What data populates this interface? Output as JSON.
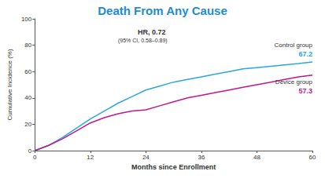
{
  "chart_data": {
    "type": "line",
    "title": "Death From Any Cause",
    "x_label": "Months since Enrollment",
    "y_label": "Cumulative Incidence (%)",
    "annotations": [
      "HR, 0.72",
      "(95% CI, 0.58–0.89)"
    ],
    "x": [
      0,
      3,
      6,
      9,
      12,
      15,
      18,
      21,
      24,
      27,
      30,
      33,
      36,
      39,
      42,
      45,
      48,
      51,
      54,
      57,
      60
    ],
    "series": [
      {
        "name": "Control group",
        "color": "#29a8e0",
        "values": [
          0,
          4,
          10,
          17,
          24,
          30,
          36,
          41,
          46,
          49,
          52,
          54,
          56,
          58,
          60,
          62,
          63,
          64,
          65,
          66,
          67.2
        ],
        "value_labels": [
          null,
          null,
          null,
          null,
          null,
          null,
          null,
          null,
          null,
          null,
          null,
          null,
          null,
          null,
          null,
          null,
          null,
          null,
          null,
          null,
          "67.2"
        ]
      },
      {
        "name": "Device group",
        "color": "#c4168c",
        "values": [
          0,
          4,
          9,
          15,
          21,
          25,
          28,
          30,
          31,
          34,
          37,
          40,
          42,
          44,
          46,
          48,
          50,
          52,
          54,
          56,
          57.3
        ],
        "value_labels": [
          null,
          null,
          null,
          null,
          null,
          null,
          null,
          null,
          null,
          null,
          null,
          null,
          null,
          null,
          null,
          null,
          null,
          null,
          null,
          null,
          "57.3"
        ]
      }
    ],
    "xlim": [
      0,
      60
    ],
    "xticks": [
      0,
      12,
      24,
      36,
      48,
      60
    ],
    "ylim": [
      0,
      100
    ],
    "yticks": [
      0,
      20,
      40,
      60,
      80,
      100
    ],
    "grid": false,
    "data_labels": true
  }
}
